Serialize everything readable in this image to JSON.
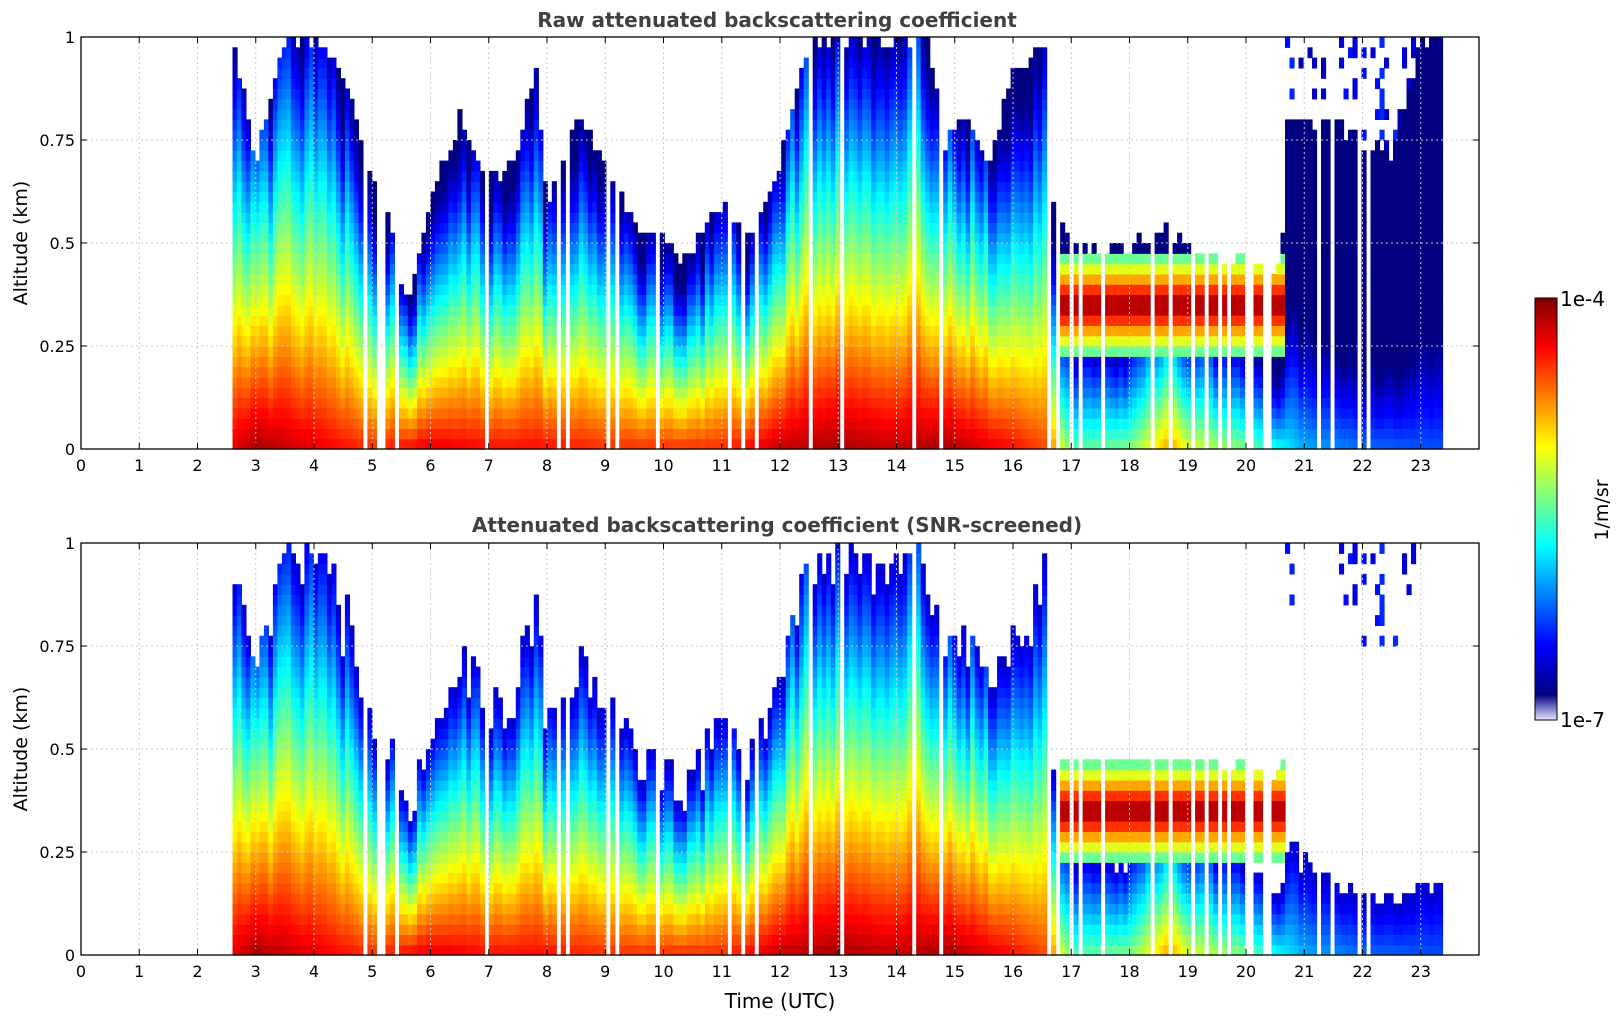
{
  "colors": {
    "jet": [
      "#000080",
      "#0000ff",
      "#0080ff",
      "#00ffff",
      "#80ff80",
      "#ffff00",
      "#ff8000",
      "#ff0000",
      "#800000"
    ],
    "low": "#e6e6ff",
    "mask": "#000000",
    "title": "#404040",
    "grid": "#c8c8c8"
  },
  "colorbar": {
    "label": "1/m/sr",
    "top_label": "1e-4",
    "bottom_label": "1e-7",
    "range_log10": [
      -7,
      -4
    ]
  },
  "chart_data": [
    {
      "type": "heatmap",
      "title": "Raw attenuated backscattering coefficient",
      "xlabel": "",
      "ylabel": "Altitude (km)",
      "xlim": [
        0,
        24
      ],
      "ylim": [
        0,
        1
      ],
      "xticks": [
        0,
        1,
        2,
        3,
        4,
        5,
        6,
        7,
        8,
        9,
        10,
        11,
        12,
        13,
        14,
        15,
        16,
        17,
        18,
        19,
        20,
        21,
        22,
        23
      ],
      "xticklabels": [
        "0",
        "1",
        "2",
        "3",
        "4",
        "5",
        "6",
        "7",
        "8",
        "9",
        "10",
        "11",
        "12",
        "13",
        "14",
        "15",
        "16",
        "17",
        "18",
        "19",
        "20",
        "21",
        "22",
        "23"
      ],
      "yticks": [
        0,
        0.25,
        0.5,
        0.75,
        1
      ],
      "yticklabels": [
        "0",
        "0.25",
        "0.5",
        "0.75",
        "1"
      ],
      "grid": true,
      "z_unit": "1/m/sr (log10)",
      "data_start_hour": 2.6,
      "data_end_hour": 23.45,
      "cloud_top_km": [
        [
          2.6,
          1.0
        ],
        [
          3.0,
          0.7
        ],
        [
          3.5,
          1.0
        ],
        [
          4.0,
          1.0
        ],
        [
          4.5,
          0.9
        ],
        [
          5.0,
          0.65
        ],
        [
          5.3,
          0.55
        ],
        [
          5.6,
          0.35
        ],
        [
          6.0,
          0.6
        ],
        [
          6.5,
          0.8
        ],
        [
          7.0,
          0.65
        ],
        [
          7.5,
          0.7
        ],
        [
          7.8,
          0.95
        ],
        [
          8.0,
          0.6
        ],
        [
          8.5,
          0.8
        ],
        [
          9.0,
          0.7
        ],
        [
          9.5,
          0.55
        ],
        [
          10.0,
          0.5
        ],
        [
          10.4,
          0.45
        ],
        [
          11.0,
          0.6
        ],
        [
          11.5,
          0.5
        ],
        [
          12.0,
          0.7
        ],
        [
          12.5,
          1.0
        ],
        [
          13.0,
          1.0
        ],
        [
          13.5,
          1.0
        ],
        [
          14.0,
          1.0
        ],
        [
          14.5,
          1.0
        ],
        [
          14.8,
          0.75
        ],
        [
          15.2,
          0.8
        ],
        [
          15.6,
          0.7
        ],
        [
          16.0,
          0.9
        ],
        [
          16.6,
          1.0
        ],
        [
          16.7,
          0.55
        ],
        [
          17.0,
          0.5
        ],
        [
          18.0,
          0.48
        ],
        [
          18.6,
          0.55
        ],
        [
          19.0,
          0.5
        ],
        [
          19.5,
          0.47
        ],
        [
          20.0,
          0.45
        ],
        [
          20.6,
          0.43
        ],
        [
          20.7,
          0.8
        ],
        [
          21.5,
          0.8
        ],
        [
          22.5,
          0.7
        ],
        [
          23.0,
          1.0
        ],
        [
          23.45,
          1.0
        ]
      ],
      "near_surface_log10": [
        [
          2.6,
          -4.3
        ],
        [
          3.0,
          -4.1
        ],
        [
          4.0,
          -4.3
        ],
        [
          5.0,
          -4.5
        ],
        [
          6.0,
          -4.3
        ],
        [
          7.0,
          -4.4
        ],
        [
          8.0,
          -4.4
        ],
        [
          9.0,
          -4.5
        ],
        [
          10.0,
          -4.5
        ],
        [
          11.0,
          -4.5
        ],
        [
          12.0,
          -4.2
        ],
        [
          13.0,
          -4.1
        ],
        [
          14.0,
          -4.2
        ],
        [
          14.8,
          -4.1
        ],
        [
          16.0,
          -4.4
        ],
        [
          16.6,
          -4.6
        ],
        [
          17.0,
          -5.6
        ],
        [
          18.0,
          -5.5
        ],
        [
          18.7,
          -4.8
        ],
        [
          19.0,
          -5.2
        ],
        [
          20.0,
          -5.5
        ],
        [
          21.0,
          -6.1
        ],
        [
          22.0,
          -6.3
        ],
        [
          23.45,
          -6.4
        ]
      ],
      "elevated_layer": {
        "start": 16.7,
        "end": 20.7,
        "bottom_km": 0.25,
        "top_km": 0.45,
        "peak_log10": -4.0
      }
    },
    {
      "type": "heatmap",
      "title": "Attenuated backscattering coefficient (SNR-screened)",
      "xlabel": "Time (UTC)",
      "ylabel": "Altitude (km)",
      "xlim": [
        0,
        24
      ],
      "ylim": [
        0,
        1
      ],
      "xticks": [
        0,
        1,
        2,
        3,
        4,
        5,
        6,
        7,
        8,
        9,
        10,
        11,
        12,
        13,
        14,
        15,
        16,
        17,
        18,
        19,
        20,
        21,
        22,
        23
      ],
      "xticklabels": [
        "0",
        "1",
        "2",
        "3",
        "4",
        "5",
        "6",
        "7",
        "8",
        "9",
        "10",
        "11",
        "12",
        "13",
        "14",
        "15",
        "16",
        "17",
        "18",
        "19",
        "20",
        "21",
        "22",
        "23"
      ],
      "yticks": [
        0,
        0.25,
        0.5,
        0.75,
        1
      ],
      "yticklabels": [
        "0",
        "0.25",
        "0.5",
        "0.75",
        "1"
      ],
      "grid": true,
      "z_unit": "1/m/sr (log10)",
      "screen_threshold_log10": -6.8,
      "saturated_masked_black": true
    }
  ]
}
